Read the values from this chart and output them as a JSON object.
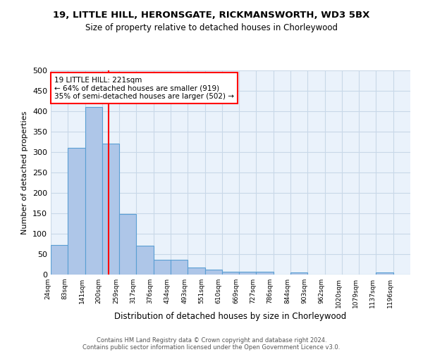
{
  "title_line1": "19, LITTLE HILL, HERONSGATE, RICKMANSWORTH, WD3 5BX",
  "title_line2": "Size of property relative to detached houses in Chorleywood",
  "xlabel": "Distribution of detached houses by size in Chorleywood",
  "ylabel": "Number of detached properties",
  "categories": [
    "24sqm",
    "83sqm",
    "141sqm",
    "200sqm",
    "259sqm",
    "317sqm",
    "376sqm",
    "434sqm",
    "493sqm",
    "551sqm",
    "610sqm",
    "669sqm",
    "727sqm",
    "786sqm",
    "844sqm",
    "903sqm",
    "962sqm",
    "1020sqm",
    "1079sqm",
    "1137sqm",
    "1196sqm"
  ],
  "values": [
    73,
    310,
    410,
    320,
    148,
    70,
    37,
    37,
    18,
    12,
    7,
    7,
    7,
    0,
    5,
    0,
    0,
    0,
    0,
    5,
    0
  ],
  "bar_color": "#aec6e8",
  "bar_edge_color": "#5a9fd4",
  "property_size": 221,
  "annotation_text": "19 LITTLE HILL: 221sqm\n← 64% of detached houses are smaller (919)\n35% of semi-detached houses are larger (502) →",
  "annotation_box_color": "white",
  "annotation_box_edge_color": "red",
  "vline_color": "red",
  "ylim": [
    0,
    500
  ],
  "yticks": [
    0,
    50,
    100,
    150,
    200,
    250,
    300,
    350,
    400,
    450,
    500
  ],
  "grid_color": "#c8d8e8",
  "background_color": "#eaf2fb",
  "footer_line1": "Contains HM Land Registry data © Crown copyright and database right 2024.",
  "footer_line2": "Contains public sector information licensed under the Open Government Licence v3.0.",
  "bins_edges": [
    24,
    83,
    141,
    200,
    259,
    317,
    376,
    434,
    493,
    551,
    610,
    669,
    727,
    786,
    844,
    903,
    962,
    1020,
    1079,
    1137,
    1196,
    1255
  ]
}
